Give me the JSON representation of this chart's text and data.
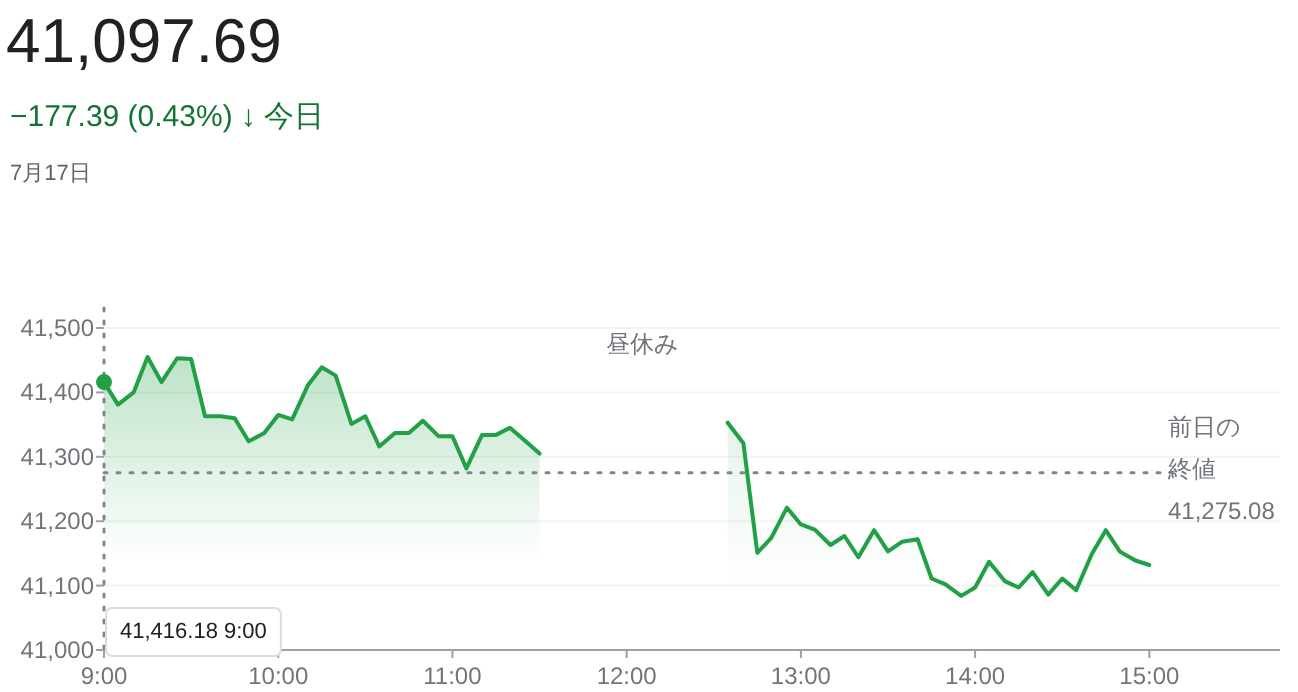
{
  "chart_data": {
    "type": "area",
    "title": "41,097.69",
    "subtitle": "−177.39 (0.43%) ↓ 今日",
    "annotations": [
      "7月17日",
      "昼休み",
      "41,416.18 9:00"
    ],
    "series": [
      {
        "color": "#22a045",
        "x": [
          9.0,
          9.08,
          9.17,
          9.25,
          9.33,
          9.42,
          9.5,
          9.58,
          9.67,
          9.75,
          9.83,
          9.92,
          10.0,
          10.08,
          10.17,
          10.25,
          10.33,
          10.42,
          10.5,
          10.58,
          10.67,
          10.75,
          10.83,
          10.92,
          11.0,
          11.08,
          11.17,
          11.25,
          11.33,
          11.42,
          11.5
        ],
        "values": [
          41416,
          41381,
          41400,
          41455,
          41416,
          41453,
          41452,
          41363,
          41363,
          41360,
          41324,
          41337,
          41365,
          41358,
          41411,
          41439,
          41426,
          41351,
          41363,
          41316,
          41337,
          41337,
          41356,
          41332,
          41332,
          41282,
          41334,
          41334,
          41345,
          41324,
          41305
        ]
      },
      {
        "color": "#22a045",
        "x": [
          12.58,
          12.67,
          12.75,
          12.83,
          12.92,
          13.0,
          13.08,
          13.17,
          13.25,
          13.33,
          13.42,
          13.5,
          13.58,
          13.67,
          13.75,
          13.83,
          13.92,
          14.0,
          14.08,
          14.17,
          14.25,
          14.33,
          14.42,
          14.5,
          14.58,
          14.67,
          14.75,
          14.83,
          14.92,
          15.0
        ],
        "values": [
          41353,
          41321,
          41151,
          41174,
          41221,
          41195,
          41187,
          41163,
          41177,
          41144,
          41186,
          41153,
          41168,
          41172,
          41111,
          41102,
          41084,
          41097,
          41137,
          41107,
          41097,
          41121,
          41086,
          41111,
          41093,
          41149,
          41186,
          41153,
          41139,
          41132
        ]
      }
    ],
    "xlim": [
      9,
      15.75
    ],
    "xticks": [
      {
        "value": 9,
        "label": "9:00"
      },
      {
        "value": 10,
        "label": "10:00"
      },
      {
        "value": 11,
        "label": "11:00"
      },
      {
        "value": 12,
        "label": "12:00"
      },
      {
        "value": 13,
        "label": "13:00"
      },
      {
        "value": 14,
        "label": "14:00"
      },
      {
        "value": 15,
        "label": "15:00"
      }
    ],
    "ylim": [
      41000,
      41500
    ],
    "yticks": [
      {
        "value": 41000,
        "label": "41,000"
      },
      {
        "value": 41100,
        "label": "41,100"
      },
      {
        "value": 41200,
        "label": "41,200"
      },
      {
        "value": 41300,
        "label": "41,300"
      },
      {
        "value": 41400,
        "label": "41,400"
      },
      {
        "value": 41500,
        "label": "41,500"
      }
    ],
    "ref_lines": [
      {
        "axis": "y",
        "value": 41275.08,
        "label": "前日の終値\n41,275.08",
        "color": "#80868b",
        "line_style": "dotted"
      },
      {
        "axis": "x",
        "value": 9,
        "color": "#80868b",
        "line_style": "dotted"
      }
    ],
    "grid": "y"
  }
}
